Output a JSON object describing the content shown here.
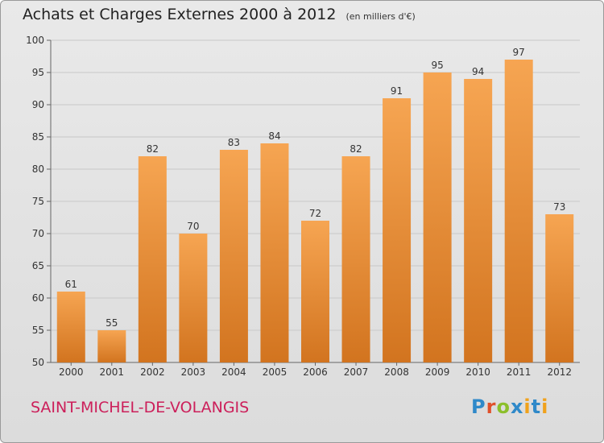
{
  "header": {
    "title": "Achats et Charges Externes 2000 à 2012",
    "subtitle": "(en milliers d'€)"
  },
  "footer": {
    "commune": "SAINT-MICHEL-DE-VOLANGIS",
    "brand": "Proxiti"
  },
  "colors": {
    "bar_light": "#f6a552",
    "bar_dark": "#d2741f",
    "commune": "#cc1f5a",
    "grid": "#c8c8c8"
  },
  "chart_data": {
    "type": "bar",
    "title": "Achats et Charges Externes 2000 à 2012",
    "subtitle": "(en milliers d'€)",
    "xlabel": "",
    "ylabel": "",
    "categories": [
      "2000",
      "2001",
      "2002",
      "2003",
      "2004",
      "2005",
      "2006",
      "2007",
      "2008",
      "2009",
      "2010",
      "2011",
      "2012"
    ],
    "values": [
      61,
      55,
      82,
      70,
      83,
      84,
      72,
      82,
      91,
      95,
      94,
      97,
      73
    ],
    "ylim": [
      50,
      100
    ],
    "yticks": [
      50,
      55,
      60,
      65,
      70,
      75,
      80,
      85,
      90,
      95,
      100
    ],
    "grid": true,
    "data_labels": true
  }
}
